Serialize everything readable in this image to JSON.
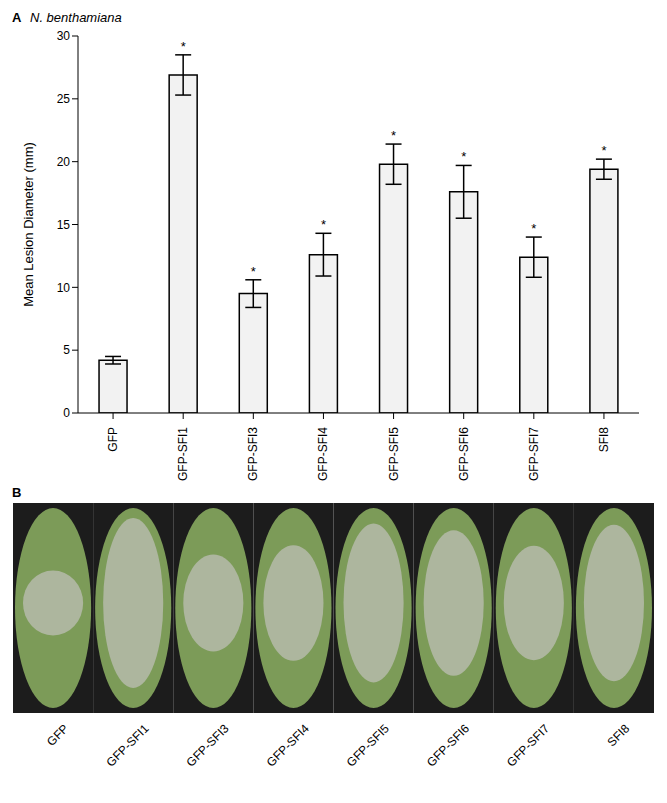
{
  "chart_data": {
    "type": "bar",
    "title": "N. benthamiana",
    "y_label": "Mean Lesion Diameter (mm)",
    "categories": [
      "GFP",
      "GFP-SFI1",
      "GFP-SFI3",
      "GFP-SFI4",
      "GFP-SFI5",
      "GFP-SFI6",
      "GFP-SFI7",
      "SFI8"
    ],
    "values": [
      4.2,
      26.9,
      9.5,
      12.6,
      19.8,
      17.6,
      12.4,
      19.4
    ],
    "errors": [
      0.3,
      1.6,
      1.1,
      1.7,
      1.6,
      2.1,
      1.6,
      0.8
    ],
    "significance": [
      null,
      "*",
      "*",
      "*",
      "*",
      "*",
      "*",
      "*"
    ],
    "color": "#f2f2f2",
    "ylim": [
      0,
      30
    ],
    "yticks": [
      0,
      5,
      10,
      15,
      20,
      25,
      30
    ],
    "grid": false
  },
  "panel_a": {
    "label": "A"
  },
  "panel_b": {
    "label": "B",
    "photos": [
      "GFP",
      "GFP-SFI1",
      "GFP-SFI3",
      "GFP-SFI4",
      "GFP-SFI5",
      "GFP-SFI6",
      "GFP-SFI7",
      "SFI8"
    ]
  }
}
